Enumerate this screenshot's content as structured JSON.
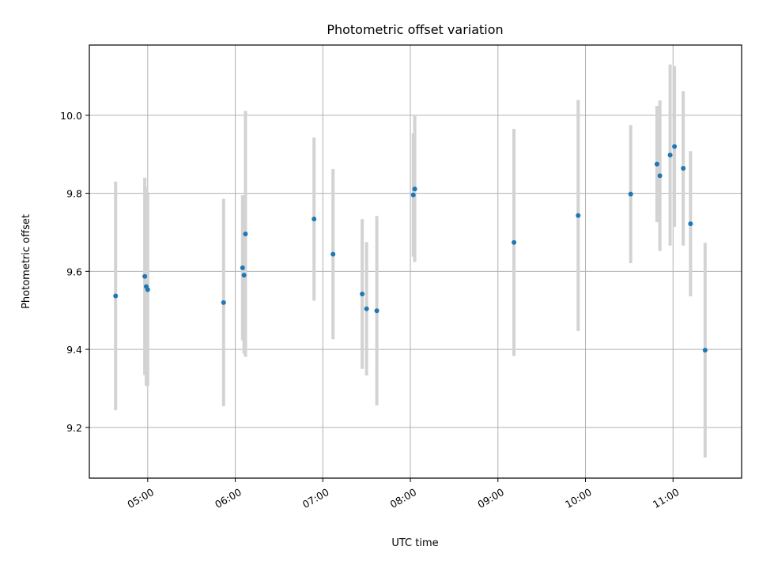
{
  "chart_data": {
    "type": "scatter",
    "title": "Photometric offset variation",
    "xlabel": "UTC time",
    "ylabel": "Photometric offset",
    "x_ticks": [
      "05:00",
      "06:00",
      "07:00",
      "08:00",
      "09:00",
      "10:00",
      "11:00"
    ],
    "y_ticks": [
      9.2,
      9.4,
      9.6,
      9.8,
      10.0
    ],
    "xlim": [
      "04:20",
      "11:47"
    ],
    "ylim": [
      9.07,
      10.18
    ],
    "grid": true,
    "colors": {
      "point": "#1f77b4",
      "errorbar": "#d3d3d3",
      "grid": "#b0b0b0"
    },
    "points": [
      {
        "x": "04:38",
        "y": 9.537,
        "yerr": 0.293
      },
      {
        "x": "04:58",
        "y": 9.587,
        "yerr": 0.253
      },
      {
        "x": "04:59",
        "y": 9.561,
        "yerr": 0.255
      },
      {
        "x": "05:00",
        "y": 9.553,
        "yerr": 0.246
      },
      {
        "x": "05:52",
        "y": 9.52,
        "yerr": 0.266
      },
      {
        "x": "06:05",
        "y": 9.609,
        "yerr": 0.186
      },
      {
        "x": "06:06",
        "y": 9.59,
        "yerr": 0.201
      },
      {
        "x": "06:07",
        "y": 9.696,
        "yerr": 0.315
      },
      {
        "x": "06:54",
        "y": 9.734,
        "yerr": 0.209
      },
      {
        "x": "07:07",
        "y": 9.644,
        "yerr": 0.218
      },
      {
        "x": "07:27",
        "y": 9.542,
        "yerr": 0.192
      },
      {
        "x": "07:30",
        "y": 9.504,
        "yerr": 0.171
      },
      {
        "x": "07:37",
        "y": 9.499,
        "yerr": 0.243
      },
      {
        "x": "08:02",
        "y": 9.796,
        "yerr": 0.158
      },
      {
        "x": "08:03",
        "y": 9.811,
        "yerr": 0.187
      },
      {
        "x": "09:11",
        "y": 9.674,
        "yerr": 0.291
      },
      {
        "x": "09:55",
        "y": 9.743,
        "yerr": 0.296
      },
      {
        "x": "10:31",
        "y": 9.798,
        "yerr": 0.177
      },
      {
        "x": "10:49",
        "y": 9.875,
        "yerr": 0.149
      },
      {
        "x": "10:51",
        "y": 9.845,
        "yerr": 0.193
      },
      {
        "x": "10:58",
        "y": 9.898,
        "yerr": 0.232
      },
      {
        "x": "11:01",
        "y": 9.92,
        "yerr": 0.206
      },
      {
        "x": "11:07",
        "y": 9.864,
        "yerr": 0.198
      },
      {
        "x": "11:12",
        "y": 9.722,
        "yerr": 0.186
      },
      {
        "x": "11:22",
        "y": 9.398,
        "yerr": 0.275
      }
    ]
  }
}
